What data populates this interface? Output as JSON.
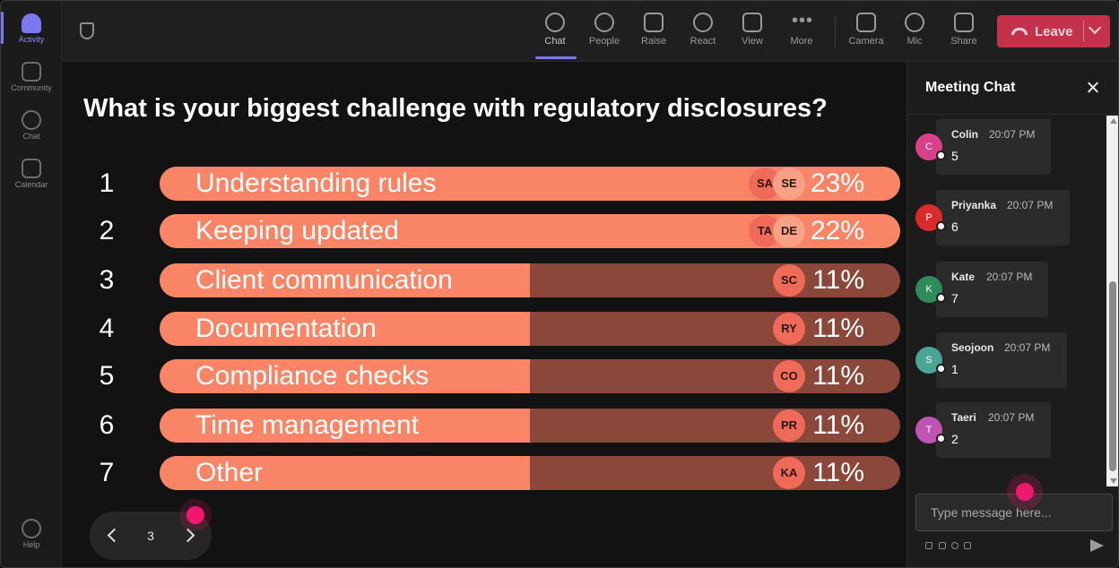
{
  "rail": {
    "items": [
      {
        "label": "Activity",
        "icon": "bell-icon",
        "active": true
      },
      {
        "label": "Community",
        "icon": "community-icon",
        "active": false
      },
      {
        "label": "Chat",
        "icon": "chat-icon",
        "active": false
      },
      {
        "label": "Calendar",
        "icon": "calendar-icon",
        "active": false
      }
    ],
    "help": {
      "label": "Help",
      "icon": "help-icon"
    }
  },
  "toolbar": {
    "chat": "Chat",
    "people": "People",
    "raise": "Raise",
    "react": "React",
    "view": "View",
    "more": "More",
    "camera": "Camera",
    "mic": "Mic",
    "share": "Share",
    "leave": "Leave"
  },
  "colors": {
    "accent": "#7b78f0",
    "bar_fill": "#f98566",
    "bar_track": "#8a473a",
    "leave": "#c4314b",
    "cursor": "#f0186e"
  },
  "poll": {
    "question": "What is your biggest challenge with regulatory disclosures?",
    "page": "3",
    "options": [
      {
        "num": "1",
        "label": "Understanding rules",
        "percent": "23%",
        "fraction": 1.0,
        "avatars": [
          "SA",
          "SE"
        ]
      },
      {
        "num": "2",
        "label": "Keeping updated",
        "percent": "22%",
        "fraction": 1.0,
        "avatars": [
          "TA",
          "DE"
        ]
      },
      {
        "num": "3",
        "label": "Client communication",
        "percent": "11%",
        "fraction": 0.5,
        "avatars": [
          "SC"
        ]
      },
      {
        "num": "4",
        "label": "Documentation",
        "percent": "11%",
        "fraction": 0.5,
        "avatars": [
          "RY"
        ]
      },
      {
        "num": "5",
        "label": "Compliance checks",
        "percent": "11%",
        "fraction": 0.5,
        "avatars": [
          "CO"
        ]
      },
      {
        "num": "6",
        "label": "Time management",
        "percent": "11%",
        "fraction": 0.5,
        "avatars": [
          "PR"
        ]
      },
      {
        "num": "7",
        "label": "Other",
        "percent": "11%",
        "fraction": 0.5,
        "avatars": [
          "KA"
        ]
      }
    ]
  },
  "chat": {
    "title": "Meeting Chat",
    "placeholder": "Type message here...",
    "messages": [
      {
        "initial": "C",
        "name": "Colin",
        "time": "20:07 PM",
        "text": "5",
        "color": "#d9408a"
      },
      {
        "initial": "P",
        "name": "Priyanka",
        "time": "20:07 PM",
        "text": "6",
        "color": "#d92b2b"
      },
      {
        "initial": "K",
        "name": "Kate",
        "time": "20:07 PM",
        "text": "7",
        "color": "#2f8a5c"
      },
      {
        "initial": "S",
        "name": "Seojoon",
        "time": "20:07 PM",
        "text": "1",
        "color": "#4aa597"
      },
      {
        "initial": "T",
        "name": "Taeri",
        "time": "20:07 PM",
        "text": "2",
        "color": "#c054b4"
      }
    ]
  }
}
